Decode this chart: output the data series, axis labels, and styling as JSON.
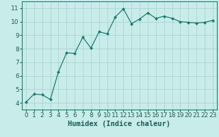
{
  "x": [
    0,
    1,
    2,
    3,
    4,
    5,
    6,
    7,
    8,
    9,
    10,
    11,
    12,
    13,
    14,
    15,
    16,
    17,
    18,
    19,
    20,
    21,
    22,
    23
  ],
  "y": [
    4.05,
    4.65,
    4.6,
    4.25,
    6.3,
    7.7,
    7.65,
    8.85,
    8.05,
    9.25,
    9.1,
    10.35,
    10.95,
    9.85,
    10.2,
    10.65,
    10.25,
    10.4,
    10.25,
    10.0,
    9.95,
    9.9,
    9.95,
    10.1
  ],
  "line_color": "#1a7a6e",
  "marker": "D",
  "marker_size": 2.0,
  "bg_color": "#c8ecea",
  "grid_color": "#aad4d0",
  "xlabel": "Humidex (Indice chaleur)",
  "xlim": [
    -0.5,
    23.5
  ],
  "ylim": [
    3.5,
    11.5
  ],
  "yticks": [
    4,
    5,
    6,
    7,
    8,
    9,
    10,
    11
  ],
  "xticks": [
    0,
    1,
    2,
    3,
    4,
    5,
    6,
    7,
    8,
    9,
    10,
    11,
    12,
    13,
    14,
    15,
    16,
    17,
    18,
    19,
    20,
    21,
    22,
    23
  ],
  "font_color": "#1a5c55",
  "xlabel_fontsize": 7.5,
  "tick_fontsize": 6.5
}
